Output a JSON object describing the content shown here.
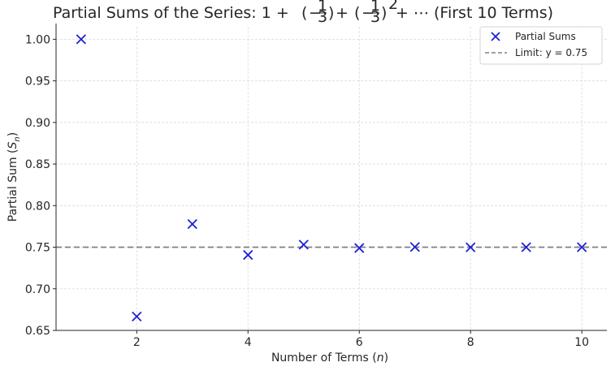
{
  "chart_data": {
    "type": "scatter",
    "title_parts": {
      "prefix": "Partial Sums of the Series: 1 + ",
      "term_sign": "−",
      "term_num": "1",
      "term_den": "3",
      "plus": " + ",
      "exponent": "2",
      "ellipsis_suffix": " + ⋯ (First 10 Terms)"
    },
    "xlabel": {
      "text": "Number of Terms (",
      "var": "n",
      "close": ")"
    },
    "ylabel": {
      "text": "Partial Sum (",
      "var": "S",
      "sub": "n",
      "close": ")"
    },
    "xlim": [
      0.55,
      10.45
    ],
    "ylim": [
      0.65,
      1.015
    ],
    "xticks": [
      2,
      4,
      6,
      8,
      10
    ],
    "yticks": [
      0.65,
      0.7,
      0.75,
      0.8,
      0.85,
      0.9,
      0.95,
      1.0
    ],
    "ytick_labels": [
      "0.65",
      "0.70",
      "0.75",
      "0.80",
      "0.85",
      "0.90",
      "0.95",
      "1.00"
    ],
    "grid": true,
    "legend_position": "top-right",
    "series": [
      {
        "name": "Partial Sums",
        "marker": "x",
        "color": "#1f1fd6",
        "x": [
          1,
          2,
          3,
          4,
          5,
          6,
          7,
          8,
          9,
          10
        ],
        "y": [
          1.0,
          0.6667,
          0.7778,
          0.7407,
          0.7531,
          0.749,
          0.7503,
          0.7499,
          0.75,
          0.75
        ]
      }
    ],
    "reference_line": {
      "name": "Limit: y = 0.75",
      "y": 0.75,
      "color": "#808080",
      "style": "dashed"
    }
  }
}
